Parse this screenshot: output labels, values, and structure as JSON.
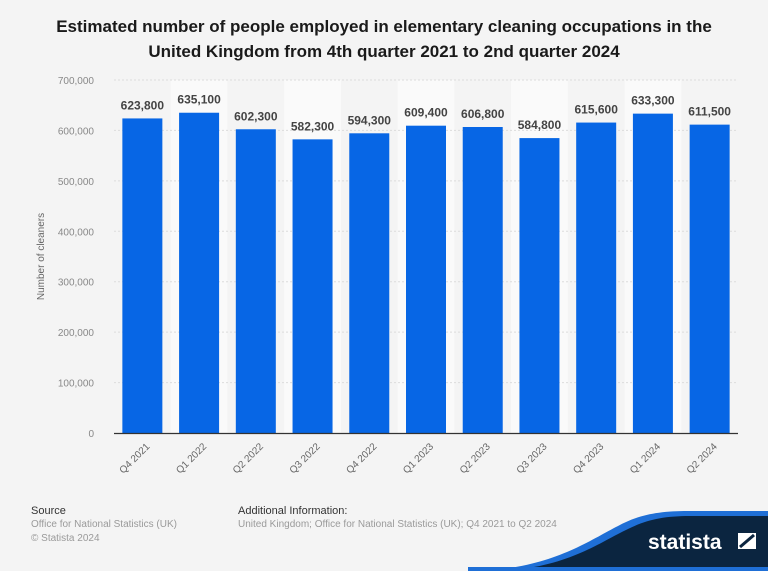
{
  "chart_data": {
    "type": "bar",
    "title": "Estimated number of people employed in elementary cleaning occupations in the United Kingdom from 4th quarter 2021 to 2nd quarter 2024",
    "ylabel": "Number of cleaners",
    "xlabel": "",
    "categories": [
      "Q4 2021",
      "Q1 2022",
      "Q2 2022",
      "Q3 2022",
      "Q4 2022",
      "Q1 2023",
      "Q2 2023",
      "Q3 2023",
      "Q4 2023",
      "Q1 2024",
      "Q2 2024"
    ],
    "values": [
      623800,
      635100,
      602300,
      582300,
      594300,
      609400,
      606800,
      584800,
      615600,
      633300,
      611500
    ],
    "data_labels": [
      "623,800",
      "635,100",
      "602,300",
      "582,300",
      "594,300",
      "609,400",
      "606,800",
      "584,800",
      "615,600",
      "633,300",
      "611,500"
    ],
    "ylim": [
      0,
      700000
    ],
    "yticks": [
      0,
      100000,
      200000,
      300000,
      400000,
      500000,
      600000,
      700000
    ],
    "ytick_labels": [
      "0",
      "100,000",
      "200,000",
      "300,000",
      "400,000",
      "500,000",
      "600,000",
      "700,000"
    ],
    "grid": true,
    "bar_color": "#0766e5"
  },
  "footer": {
    "source_heading": "Source",
    "source": "Office for National Statistics (UK)",
    "copyright": "© Statista 2024",
    "info_heading": "Additional Information:",
    "info": "United Kingdom; Office for National Statistics (UK); Q4 2021 to Q2 2024"
  },
  "logo": {
    "text": "statista",
    "colors": {
      "dark": "#0b2540",
      "accent": "#1f6fd6"
    }
  }
}
